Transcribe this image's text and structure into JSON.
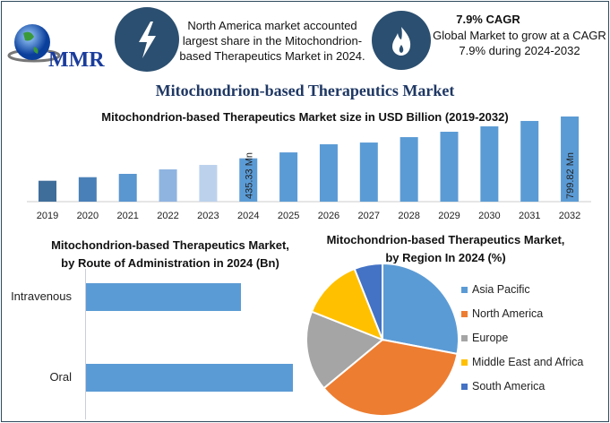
{
  "logo": {
    "text": "MMR"
  },
  "header": {
    "highlight1": {
      "icon": "lightning-icon",
      "text": "North America market accounted largest share in the Mitochondrion-based Therapeutics Market in 2024."
    },
    "highlight2": {
      "icon": "flame-icon",
      "title": "7.9% CAGR",
      "text": "Global Market to grow at a CAGR 7.9% during 2024-2032"
    }
  },
  "main_title": "Mitochondrion-based Therapeutics Market",
  "colors": {
    "bar": "#5b9bd5",
    "title": "#1f3864",
    "icon_circle": "#2b4f70",
    "border": "#2f4a5e"
  },
  "chart_data": [
    {
      "type": "bar",
      "title": "Mitochondrion-based Therapeutics Market size in USD Billion (2019-2032)",
      "categories": [
        "2019",
        "2020",
        "2021",
        "2022",
        "2023",
        "2024",
        "2025",
        "2026",
        "2027",
        "2028",
        "2029",
        "2030",
        "2031",
        "2032"
      ],
      "values": [
        240,
        271,
        300,
        339,
        378,
        435.33,
        487,
        558,
        573,
        620,
        667,
        714,
        761,
        799.82
      ],
      "bar_colors": [
        "#3f6e9a",
        "#4a80b8",
        "#5a96d0",
        "#8fb4e0",
        "#bcd2ec",
        "#5b9bd5",
        "#5b9bd5",
        "#5b9bd5",
        "#5b9bd5",
        "#5b9bd5",
        "#5b9bd5",
        "#5b9bd5",
        "#5b9bd5",
        "#5b9bd5"
      ],
      "data_labels": {
        "2024": "435.33 Mn",
        "2032": "799.82 Mn"
      },
      "ylim": [
        58,
        820
      ],
      "grid": false
    },
    {
      "type": "bar",
      "orientation": "horizontal",
      "title": "Mitochondrion-based Therapeutics Market, by Route of Administration in 2024 (Bn)",
      "categories": [
        "Intravenous",
        "Oral"
      ],
      "values": [
        0.75,
        1.0
      ],
      "grid": false
    },
    {
      "type": "pie",
      "title": "Mitochondrion-based Therapeutics Market, by Region In 2024 (%)",
      "labels": [
        "Asia Pacific",
        "North America",
        "Europe",
        "Middle East and Africa",
        "South America"
      ],
      "values": [
        28,
        36,
        17,
        13,
        6
      ],
      "colors": [
        "#5b9bd5",
        "#ed7d31",
        "#a5a5a5",
        "#ffc000",
        "#4472c4"
      ],
      "legend": "right"
    }
  ]
}
